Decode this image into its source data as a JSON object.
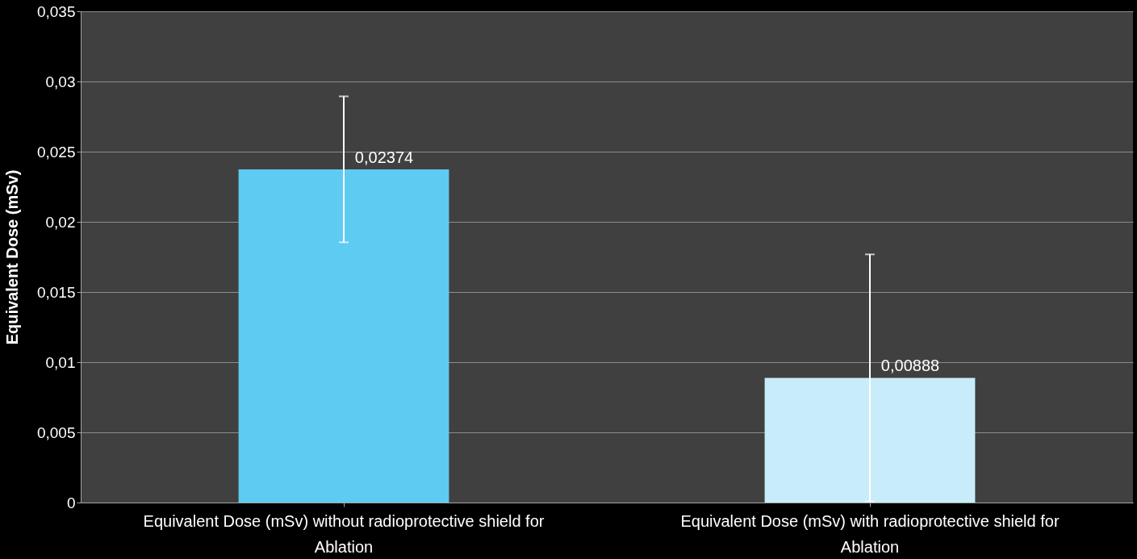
{
  "chart_data": {
    "type": "bar",
    "ylabel": "Equivalent Dose (mSv)",
    "categories": [
      "Equivalent Dose (mSv) without radioprotective shield  for Ablation",
      "Equivalent Dose (mSv) with radioprotective shield  for Ablation"
    ],
    "values": [
      0.02374,
      0.00888
    ],
    "colors": [
      "#5ecbf2",
      "#c8ecfa"
    ],
    "errors": [
      0.0052,
      0.0088
    ],
    "value_labels": [
      "0,02374",
      "0,00888"
    ],
    "ylim": [
      0,
      0.035
    ],
    "yticks": [
      {
        "value": 0,
        "label": "0"
      },
      {
        "value": 0.005,
        "label": "0,005"
      },
      {
        "value": 0.01,
        "label": "0,01"
      },
      {
        "value": 0.015,
        "label": "0,015"
      },
      {
        "value": 0.02,
        "label": "0,02"
      },
      {
        "value": 0.025,
        "label": "0,025"
      },
      {
        "value": 0.03,
        "label": "0,03"
      },
      {
        "value": 0.035,
        "label": "0,035"
      }
    ],
    "grid": "y"
  }
}
